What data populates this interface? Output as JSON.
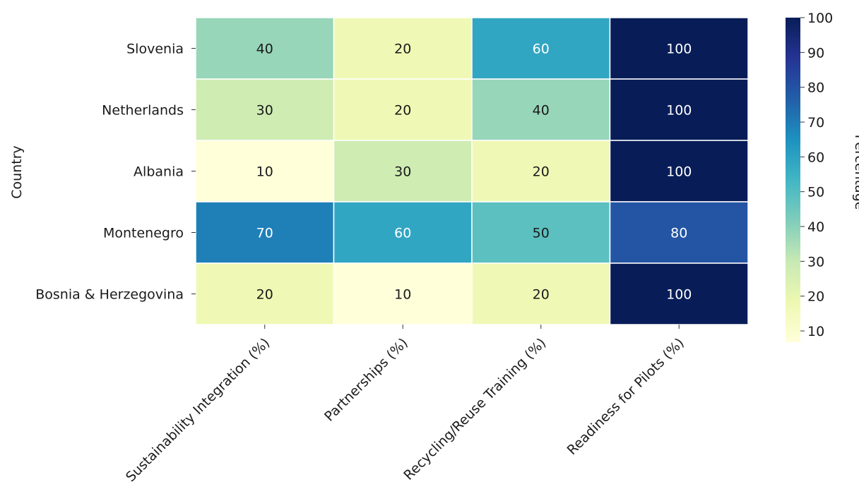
{
  "chart_data": {
    "type": "heatmap",
    "ylabel": "Country",
    "colorbar_label": "Percentage",
    "colormap": "YlGnBu",
    "rows": [
      "Slovenia",
      "Netherlands",
      "Albania",
      "Montenegro",
      "Bosnia & Herzegovina"
    ],
    "columns": [
      "Sustainability Integration (%)",
      "Partnerships (%)",
      "Recycling/Reuse Training (%)",
      "Readiness for Pilots (%)"
    ],
    "values": [
      [
        40,
        20,
        60,
        100
      ],
      [
        30,
        20,
        40,
        100
      ],
      [
        10,
        30,
        20,
        100
      ],
      [
        70,
        60,
        50,
        80
      ],
      [
        20,
        10,
        20,
        100
      ]
    ],
    "colorbar_range": [
      10,
      100
    ],
    "colorbar_ticks": [
      10,
      20,
      30,
      40,
      50,
      60,
      70,
      80,
      90,
      100
    ]
  }
}
